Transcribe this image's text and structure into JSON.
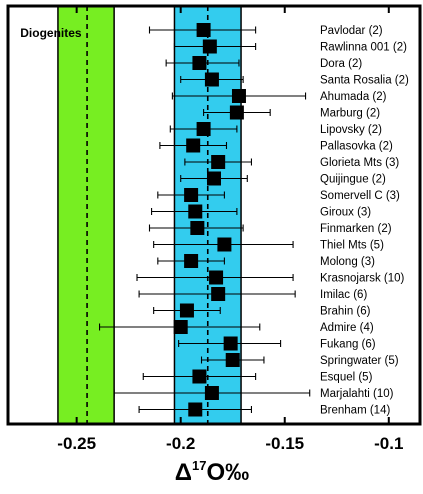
{
  "chart_data": {
    "type": "scatter",
    "xlabel_parts": [
      "Δ",
      "17",
      "O‰"
    ],
    "xlim": [
      -0.283,
      -0.085
    ],
    "xticks": [
      -0.25,
      -0.2,
      -0.15,
      -0.1
    ],
    "xtick_labels": [
      "-0.25",
      "-0.2",
      "-0.15",
      "-0.1"
    ],
    "grid": false,
    "bands": [
      {
        "label": "Diogenites",
        "x_min": -0.259,
        "x_max": -0.232,
        "center": -0.245,
        "color": "#77ee22"
      },
      {
        "label": "",
        "x_min": -0.203,
        "x_max": -0.171,
        "center": -0.187,
        "color": "#33ccee"
      }
    ],
    "points": [
      {
        "label": "Pavlodar (2)",
        "x": -0.189,
        "err_low": -0.215,
        "err_high": -0.164
      },
      {
        "label": "Rawlinna 001 (2)",
        "x": -0.186,
        "err_low": -0.203,
        "err_high": -0.164
      },
      {
        "label": "Dora (2)",
        "x": -0.191,
        "err_low": -0.207,
        "err_high": -0.172
      },
      {
        "label": "Santa Rosalia (2)",
        "x": -0.185,
        "err_low": -0.2,
        "err_high": -0.17
      },
      {
        "label": "Ahumada (2)",
        "x": -0.172,
        "err_low": -0.204,
        "err_high": -0.14
      },
      {
        "label": "Marburg (2)",
        "x": -0.173,
        "err_low": -0.189,
        "err_high": -0.157
      },
      {
        "label": "Lipovsky (2)",
        "x": -0.189,
        "err_low": -0.205,
        "err_high": -0.173
      },
      {
        "label": "Pallasovka (2)",
        "x": -0.194,
        "err_low": -0.21,
        "err_high": -0.178
      },
      {
        "label": "Glorieta Mts (3)",
        "x": -0.182,
        "err_low": -0.198,
        "err_high": -0.166
      },
      {
        "label": "Quijingue (2)",
        "x": -0.184,
        "err_low": -0.2,
        "err_high": -0.168
      },
      {
        "label": "Somervell C (3)",
        "x": -0.195,
        "err_low": -0.211,
        "err_high": -0.179
      },
      {
        "label": "Giroux (3)",
        "x": -0.193,
        "err_low": -0.214,
        "err_high": -0.173
      },
      {
        "label": "Finmarken (2)",
        "x": -0.192,
        "err_low": -0.215,
        "err_high": -0.17
      },
      {
        "label": "Thiel Mts (5)",
        "x": -0.179,
        "err_low": -0.213,
        "err_high": -0.146
      },
      {
        "label": "Molong (3)",
        "x": -0.195,
        "err_low": -0.211,
        "err_high": -0.179
      },
      {
        "label": "Krasnojarsk (10)",
        "x": -0.183,
        "err_low": -0.221,
        "err_high": -0.146
      },
      {
        "label": "Imilac (6)",
        "x": -0.182,
        "err_low": -0.22,
        "err_high": -0.145
      },
      {
        "label": "Brahin (6)",
        "x": -0.197,
        "err_low": -0.213,
        "err_high": -0.181
      },
      {
        "label": "Admire (4)",
        "x": -0.2,
        "err_low": -0.239,
        "err_high": -0.162
      },
      {
        "label": "Fukang (6)",
        "x": -0.176,
        "err_low": -0.201,
        "err_high": -0.152
      },
      {
        "label": "Springwater (5)",
        "x": -0.175,
        "err_low": -0.19,
        "err_high": -0.16
      },
      {
        "label": "Esquel (5)",
        "x": -0.191,
        "err_low": -0.218,
        "err_high": -0.164
      },
      {
        "label": "Marjalahti (10)",
        "x": -0.185,
        "err_low": -0.232,
        "err_high": -0.138
      },
      {
        "label": "Brenham (14)",
        "x": -0.193,
        "err_low": -0.22,
        "err_high": -0.166
      }
    ]
  }
}
